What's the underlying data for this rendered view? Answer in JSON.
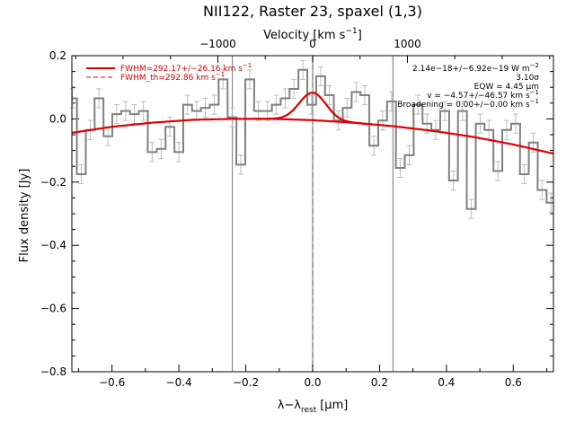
{
  "chart_data": {
    "type": "line",
    "title": "NII122, Raster 23, spaxel (1,3)",
    "xlabel": "λ−λ",
    "xlabel_sub": "rest",
    "xlabel_unit": "[μm]",
    "ylabel": "Flux density [Jy]",
    "top_axis_label": "Velocity [km s",
    "top_axis_label_sup": "−1",
    "top_axis_label_end": "]",
    "xlim": [
      -0.72,
      0.72
    ],
    "ylim": [
      -0.8,
      0.2
    ],
    "top_xlim": [
      -2540,
      2540
    ],
    "x_ticks": [
      -0.6,
      -0.4,
      -0.2,
      0.0,
      0.2,
      0.4,
      0.6
    ],
    "x_tick_labels": [
      "−0.6",
      "−0.4",
      "−0.2",
      "0.0",
      "0.2",
      "0.4",
      "0.6"
    ],
    "y_ticks": [
      -0.8,
      -0.6,
      -0.4,
      -0.2,
      0.0,
      0.2
    ],
    "y_tick_labels": [
      "−0.8",
      "−0.6",
      "−0.4",
      "−0.2",
      "0.0",
      "0.2"
    ],
    "top_ticks": [
      -1000,
      0,
      1000
    ],
    "top_tick_labels": [
      "−1000",
      "0",
      "1000"
    ],
    "vlines": [
      -0.24,
      0.0,
      0.24
    ],
    "dashed_vline": 0.0,
    "spectrum": {
      "color": "#808080",
      "step_width": 0.0265,
      "x": [
        -0.718,
        -0.692,
        -0.665,
        -0.639,
        -0.612,
        -0.586,
        -0.559,
        -0.533,
        -0.506,
        -0.48,
        -0.453,
        -0.427,
        -0.4,
        -0.374,
        -0.347,
        -0.321,
        -0.294,
        -0.268,
        -0.241,
        -0.215,
        -0.188,
        -0.162,
        -0.135,
        -0.109,
        -0.082,
        -0.056,
        -0.029,
        -0.003,
        0.024,
        0.05,
        0.077,
        0.103,
        0.13,
        0.156,
        0.183,
        0.209,
        0.236,
        0.262,
        0.289,
        0.315,
        0.342,
        0.368,
        0.395,
        0.421,
        0.448,
        0.474,
        0.501,
        0.527,
        0.554,
        0.58,
        0.607,
        0.633,
        0.66,
        0.686,
        0.713
      ],
      "y": [
        0.065,
        -0.175,
        -0.035,
        0.065,
        -0.055,
        0.015,
        0.025,
        0.015,
        0.025,
        -0.105,
        -0.095,
        -0.025,
        -0.105,
        0.045,
        0.025,
        0.035,
        0.045,
        0.125,
        0.005,
        -0.145,
        0.125,
        0.025,
        0.025,
        0.045,
        0.065,
        0.095,
        0.155,
        0.045,
        0.135,
        0.075,
        -0.005,
        0.035,
        0.085,
        0.075,
        -0.085,
        -0.005,
        0.055,
        -0.155,
        -0.115,
        0.045,
        -0.015,
        -0.035,
        0.025,
        -0.195,
        0.025,
        -0.285,
        -0.015,
        -0.035,
        -0.165,
        -0.035,
        -0.015,
        -0.175,
        -0.075,
        -0.225,
        -0.265
      ],
      "err": 0.03
    },
    "continuum": {
      "color": "#e00000",
      "x": [
        -0.72,
        -0.6,
        -0.48,
        -0.36,
        -0.24,
        -0.12,
        0.0,
        0.12,
        0.24,
        0.36,
        0.48,
        0.6,
        0.72
      ],
      "y": [
        -0.044,
        -0.025,
        -0.012,
        -0.003,
        0.0,
        0.0,
        -0.004,
        -0.012,
        -0.023,
        -0.038,
        -0.057,
        -0.081,
        -0.11
      ]
    },
    "gaussian": {
      "color": "#e00000",
      "center": 0.0,
      "sigma": 0.04,
      "amplitude": 0.087
    },
    "legend": {
      "position": "top-left",
      "entries": [
        {
          "label": "FWHM=292.17+/−26.16 km s",
          "sup": "−1",
          "style": "solid"
        },
        {
          "label": "FWHM_th=292.86 km s",
          "sup": "−1",
          "style": "dashed"
        }
      ]
    },
    "annotations": [
      {
        "text": "2.14e−18+/−6.92e−19 W m",
        "sup": "−2"
      },
      {
        "text": "3.10σ",
        "sup": ""
      },
      {
        "text": "EQW = 4.45 μm",
        "sup": ""
      },
      {
        "text": "v = −4.57+/−46.57 km s",
        "sup": "−1"
      },
      {
        "text": "Broadening = 0.00+/−0.00 km s",
        "sup": "−1"
      }
    ]
  }
}
